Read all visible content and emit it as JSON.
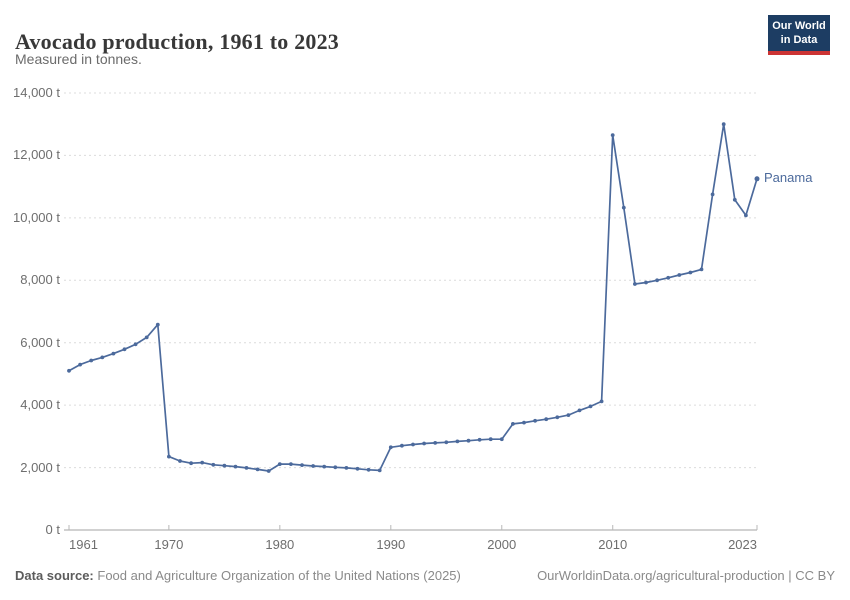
{
  "header": {
    "title": "Avocado production, 1961 to 2023",
    "subtitle": "Measured in tonnes."
  },
  "logo": {
    "line1": "Our World",
    "line2": "in Data"
  },
  "footer": {
    "source_label": "Data source:",
    "source_text": "Food and Agriculture Organization of the United Nations (2025)",
    "link_text": "OurWorldinData.org/agricultural-production | CC BY"
  },
  "colors": {
    "accent": "#4C6A9C",
    "logo_navy": "#1D3D63",
    "logo_red": "#CC3434",
    "gridline": "#dcdcdc",
    "axis": "#a3a3a3",
    "tick_label": "#6e6e6e"
  },
  "chart_data": {
    "type": "line",
    "title": "Avocado production, 1961 to 2023",
    "subtitle": "Measured in tonnes.",
    "unit": "t",
    "xlabel": "",
    "ylabel": "",
    "xlim": [
      1961,
      2023
    ],
    "ylim": [
      0,
      14000
    ],
    "xticks": [
      1961,
      1970,
      1980,
      1990,
      2000,
      2010,
      2023
    ],
    "yticks": [
      0,
      2000,
      4000,
      6000,
      8000,
      10000,
      12000,
      14000
    ],
    "grid": "horizontal-dashed",
    "legend_position": "end-of-line-label",
    "series": [
      {
        "name": "Panama",
        "color": "#4C6A9C",
        "x": [
          1961,
          1962,
          1963,
          1964,
          1965,
          1966,
          1967,
          1968,
          1969,
          1970,
          1971,
          1972,
          1973,
          1974,
          1975,
          1976,
          1977,
          1978,
          1979,
          1980,
          1981,
          1982,
          1983,
          1984,
          1985,
          1986,
          1987,
          1988,
          1989,
          1990,
          1991,
          1992,
          1993,
          1994,
          1995,
          1996,
          1997,
          1998,
          1999,
          2000,
          2001,
          2002,
          2003,
          2004,
          2005,
          2006,
          2007,
          2008,
          2009,
          2010,
          2011,
          2012,
          2013,
          2014,
          2015,
          2016,
          2017,
          2018,
          2019,
          2020,
          2021,
          2022,
          2023
        ],
        "values": [
          5100,
          5300,
          5430,
          5530,
          5650,
          5790,
          5950,
          6170,
          6580,
          2350,
          2210,
          2140,
          2160,
          2090,
          2060,
          2030,
          1990,
          1940,
          1890,
          2110,
          2110,
          2080,
          2050,
          2030,
          2010,
          1990,
          1960,
          1930,
          1910,
          2650,
          2700,
          2740,
          2770,
          2790,
          2810,
          2840,
          2860,
          2890,
          2910,
          2910,
          3400,
          3440,
          3500,
          3550,
          3610,
          3680,
          3830,
          3960,
          4120,
          12650,
          10330,
          7880,
          7930,
          8000,
          8080,
          8170,
          8250,
          8350,
          10750,
          13000,
          10580,
          10080,
          11250
        ]
      }
    ]
  }
}
